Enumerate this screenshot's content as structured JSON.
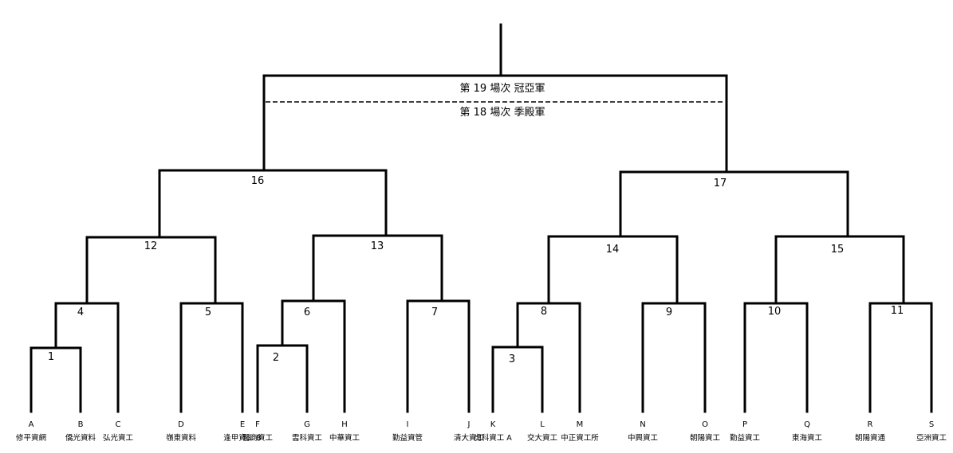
{
  "bracket": {
    "final_label": "第 19 場次  冠亞軍",
    "third_place_label": "第 18 場次  季殿軍",
    "teams": [
      {
        "letter": "A",
        "name": "修平資網"
      },
      {
        "letter": "B",
        "name": "僑光資料"
      },
      {
        "letter": "C",
        "name": "弘光資工"
      },
      {
        "letter": "D",
        "name": "嶺東資料"
      },
      {
        "letter": "E",
        "name": "逢甲資工 B"
      },
      {
        "letter": "F",
        "name": "醫商資工"
      },
      {
        "letter": "G",
        "name": "雲科資工"
      },
      {
        "letter": "H",
        "name": "中華資工"
      },
      {
        "letter": "I",
        "name": "勤益資管"
      },
      {
        "letter": "J",
        "name": "清大資工"
      },
      {
        "letter": "K",
        "name": "虎科資工 A"
      },
      {
        "letter": "L",
        "name": "交大資工"
      },
      {
        "letter": "M",
        "name": "中正資工所"
      },
      {
        "letter": "N",
        "name": "中興資工"
      },
      {
        "letter": "O",
        "name": "朝陽資工"
      },
      {
        "letter": "P",
        "name": "勤益資工"
      },
      {
        "letter": "Q",
        "name": "東海資工"
      },
      {
        "letter": "R",
        "name": "朝陽資通"
      },
      {
        "letter": "S",
        "name": "亞洲資工"
      }
    ],
    "matches": [
      {
        "id": "1"
      },
      {
        "id": "2"
      },
      {
        "id": "3"
      },
      {
        "id": "4"
      },
      {
        "id": "5"
      },
      {
        "id": "6"
      },
      {
        "id": "7"
      },
      {
        "id": "8"
      },
      {
        "id": "9"
      },
      {
        "id": "10"
      },
      {
        "id": "11"
      },
      {
        "id": "12"
      },
      {
        "id": "13"
      },
      {
        "id": "14"
      },
      {
        "id": "15"
      },
      {
        "id": "16"
      },
      {
        "id": "17"
      }
    ]
  }
}
